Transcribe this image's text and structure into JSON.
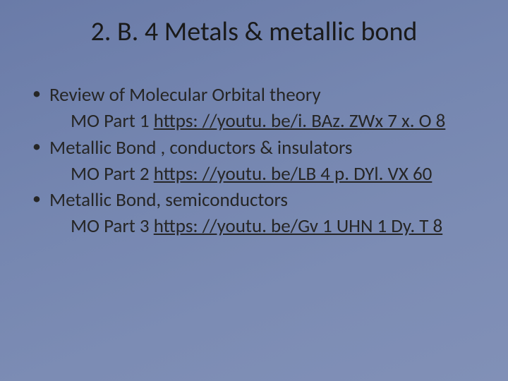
{
  "slide": {
    "background_gradient": [
      "#6a7ba8",
      "#7586b0",
      "#7c8cb4",
      "#8190b7"
    ],
    "title": "2. B. 4 Metals & metallic bond",
    "title_fontsize": 38,
    "body_fontsize": 27,
    "text_color": "#262626",
    "bullets": [
      {
        "text": "Review of Molecular Orbital theory",
        "sub_prefix": "MO Part 1 ",
        "sub_link": "https: //youtu. be/i. BAz. ZWx 7 x. O 8"
      },
      {
        "text": "Metallic Bond , conductors & insulators",
        "sub_prefix": "MO Part 2 ",
        "sub_link": "https: //youtu. be/LB 4 p. DYl. VX 60"
      },
      {
        "text": "Metallic Bond, semiconductors",
        "sub_prefix": "MO Part 3 ",
        "sub_link": "https: //youtu. be/Gv 1 UHN 1 Dy. T 8"
      }
    ]
  }
}
